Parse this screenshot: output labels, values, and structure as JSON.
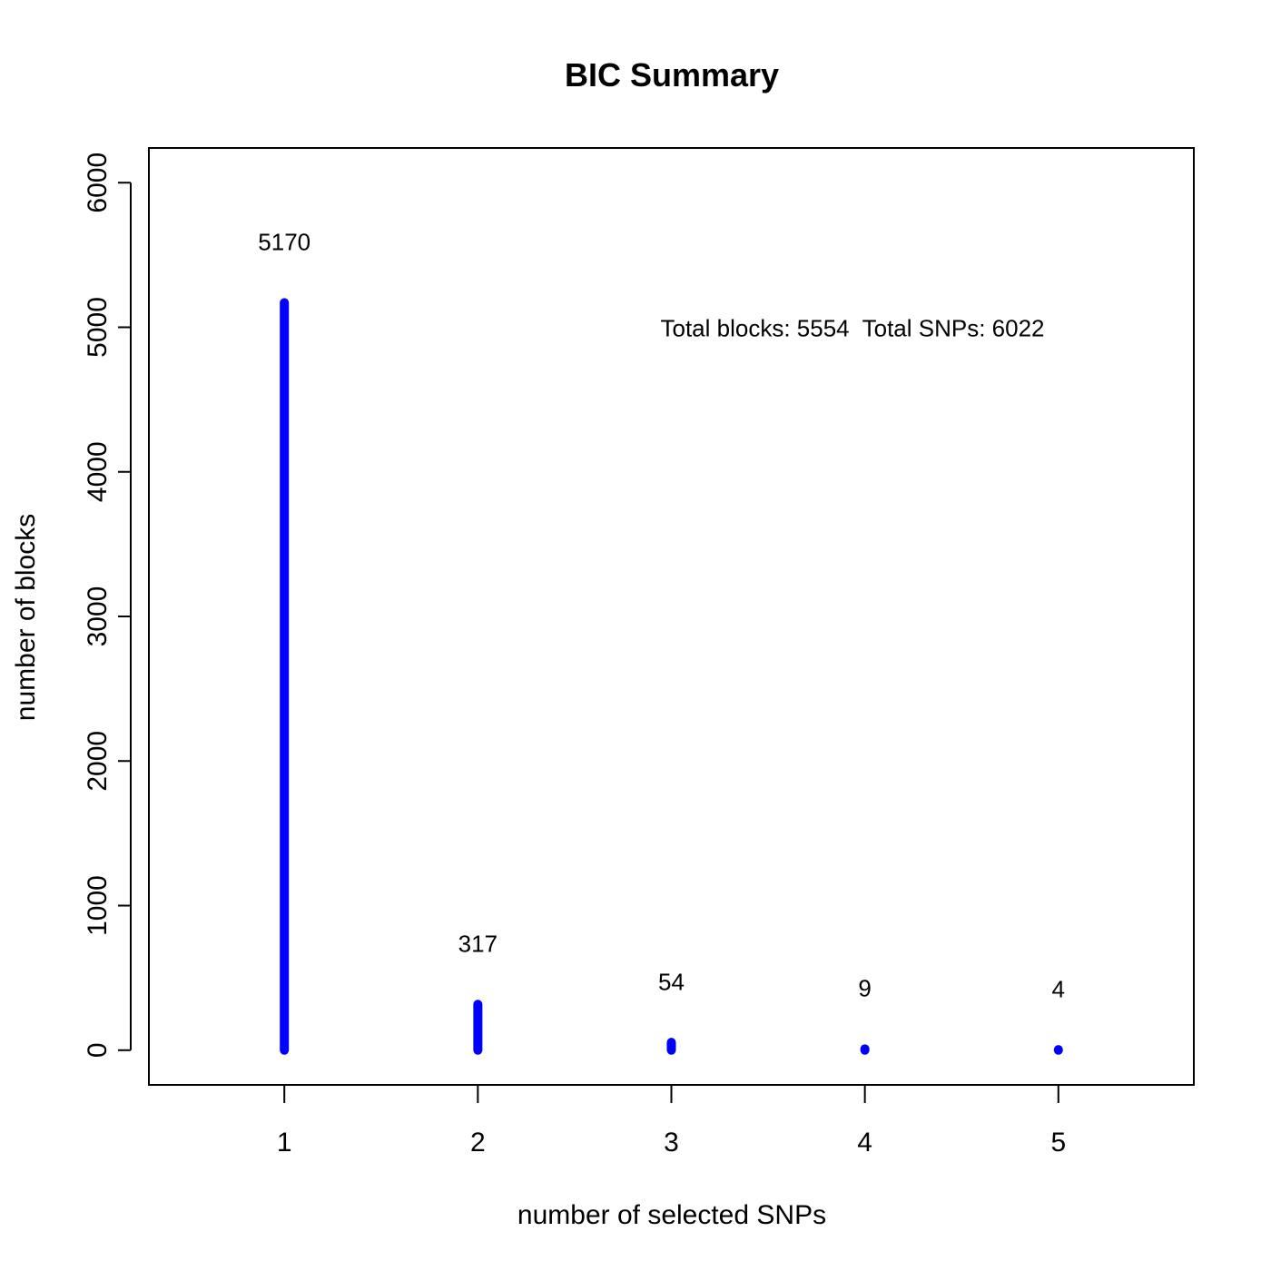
{
  "chart_data": {
    "type": "bar",
    "title": "BIC Summary",
    "xlabel": "number of selected SNPs",
    "ylabel": "number of blocks",
    "categories": [
      "1",
      "2",
      "3",
      "4",
      "5"
    ],
    "values": [
      5170,
      317,
      54,
      9,
      4
    ],
    "data_labels": [
      "5170",
      "317",
      "54",
      "9",
      "4"
    ],
    "xlim": [
      0.3,
      5.7
    ],
    "ylim": [
      -240,
      6240
    ],
    "yticks": [
      0,
      1000,
      2000,
      3000,
      4000,
      5000,
      6000
    ],
    "ytick_labels": [
      "0",
      "1000",
      "2000",
      "3000",
      "4000",
      "5000",
      "6000"
    ],
    "annotation": "Total blocks: 5554  Total SNPs: 6022",
    "annotation_position": {
      "x": 3.0,
      "y": 5000
    },
    "grid": false,
    "bar_color": "#0000ff"
  }
}
